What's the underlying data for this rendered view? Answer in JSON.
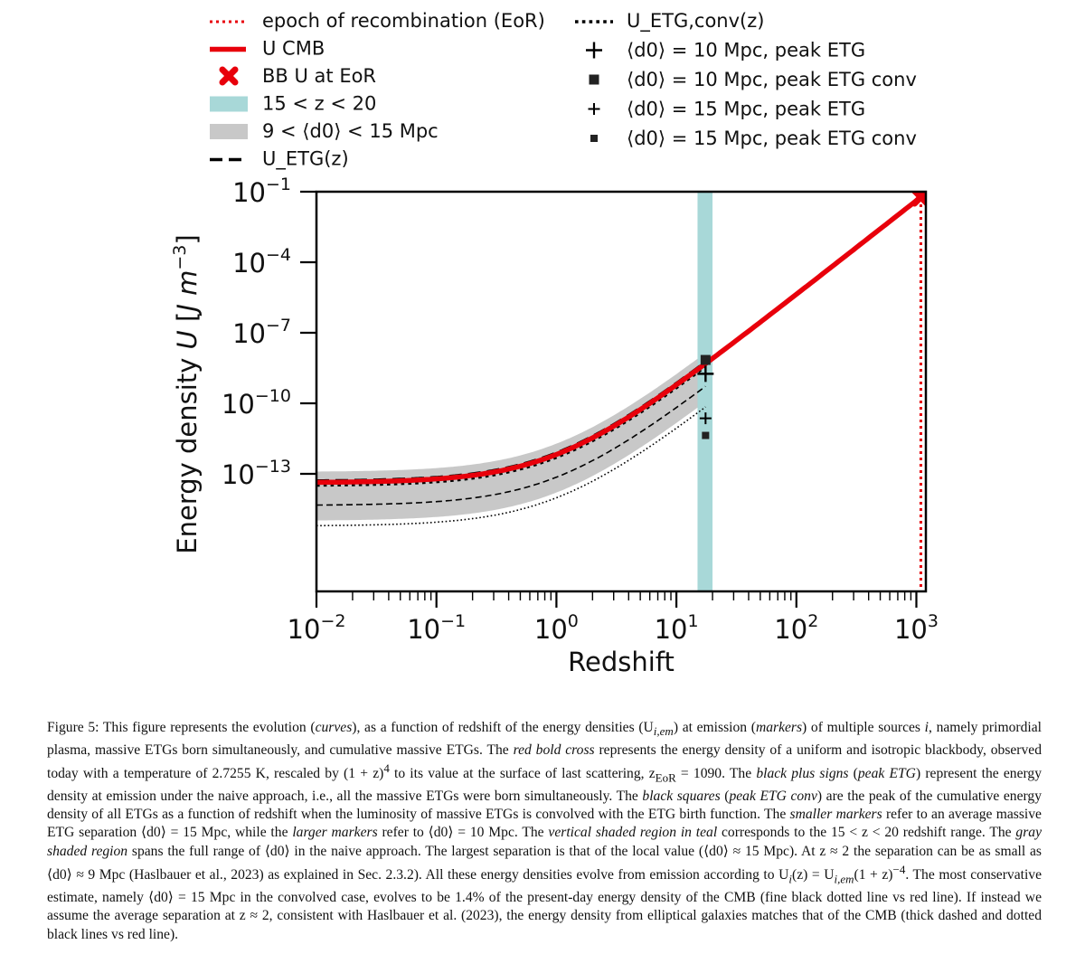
{
  "chart_data": {
    "type": "line",
    "xscale": "log",
    "yscale": "log",
    "xlabel": "Redshift",
    "ylabel": "Energy density U [J m^-3]",
    "xlim": [
      0.01,
      1200
    ],
    "ylim": [
      1e-18,
      0.1
    ],
    "x_ticks": [
      {
        "exp": "−2",
        "value": 0.01
      },
      {
        "exp": "−1",
        "value": 0.1
      },
      {
        "exp": "0",
        "value": 1
      },
      {
        "exp": "1",
        "value": 10
      },
      {
        "exp": "2",
        "value": 100
      },
      {
        "exp": "3",
        "value": 1000
      }
    ],
    "y_ticks": [
      {
        "exp": "−1",
        "value": 0.1
      },
      {
        "exp": "−4",
        "value": 0.0001
      },
      {
        "exp": "−7",
        "value": 1e-07
      },
      {
        "exp": "−10",
        "value": 1e-10
      },
      {
        "exp": "−13",
        "value": 1e-13
      }
    ],
    "series": [
      {
        "name": "epoch of recombination (EoR)",
        "kind": "vline",
        "x": 1090,
        "color": "#e8000b",
        "style": "dotted"
      },
      {
        "name": "U CMB",
        "kind": "curve",
        "u0": 4.17e-14,
        "z_start": 0.01,
        "z_end": 1090,
        "color": "#e8000b",
        "style": "bold"
      },
      {
        "name": "BB U at EoR",
        "kind": "marker",
        "x": 1090,
        "y": 0.0589,
        "color": "#e8000b"
      },
      {
        "name": "15 < z < 20",
        "kind": "vspan",
        "x": [
          15,
          20
        ],
        "color": "#a8d8d8"
      },
      {
        "name": "9 < ⟨d0⟩ < 15 Mpc",
        "kind": "band",
        "u0_low": 1e-15,
        "u0_high": 1.2e-13,
        "z_end": 17.5,
        "color": "#c8c8c8"
      },
      {
        "name": "U_ETG(z)",
        "kind": "curve",
        "style": "dashed-thick",
        "u0": 4.8e-14,
        "z_end": 17.5,
        "color": "#000000"
      },
      {
        "name": "U_ETG(z) (15 Mpc)",
        "kind": "curve",
        "style": "dashed-thin",
        "u0": 4.5e-15,
        "z_end": 17.5,
        "color": "#000000"
      },
      {
        "name": "U_ETG,conv(z)",
        "kind": "curve",
        "style": "dotted-thick",
        "u0": 3.2e-14,
        "z_end": 17.5,
        "color": "#000000"
      },
      {
        "name": "U_ETG,conv(z) (15 Mpc)",
        "kind": "curve",
        "style": "dotted-thin",
        "u0": 6e-16,
        "z_end": 17.5,
        "color": "#000000"
      }
    ],
    "markers": [
      {
        "name": "⟨d0⟩ = 10 Mpc, peak ETG",
        "shape": "plus-large",
        "x": 17.5,
        "y": 1.8e-09
      },
      {
        "name": "⟨d0⟩ = 10 Mpc, peak ETG conv",
        "shape": "square-large",
        "x": 17.5,
        "y": 7e-09
      },
      {
        "name": "⟨d0⟩ = 15 Mpc, peak ETG",
        "shape": "plus-small",
        "x": 17.5,
        "y": 2.3e-11
      },
      {
        "name": "⟨d0⟩ = 15 Mpc, peak ETG conv",
        "shape": "square-small",
        "x": 17.5,
        "y": 4.3e-12
      }
    ],
    "legend_left": [
      {
        "id": "eor",
        "label": "epoch of recombination (EoR)"
      },
      {
        "id": "cmb",
        "label": "U CMB"
      },
      {
        "id": "bb",
        "label": "BB U at EoR"
      },
      {
        "id": "teal",
        "label": "15 < z < 20"
      },
      {
        "id": "gray",
        "label": "9 < ⟨d0⟩ < 15 Mpc"
      },
      {
        "id": "etg",
        "label": "U_ETG(z)"
      }
    ],
    "legend_right": [
      {
        "id": "conv",
        "label": "U_ETG,conv(z)"
      },
      {
        "id": "p10",
        "label": "⟨d0⟩ = 10 Mpc, peak ETG"
      },
      {
        "id": "s10",
        "label": "⟨d0⟩ = 10 Mpc, peak ETG conv"
      },
      {
        "id": "p15",
        "label": "⟨d0⟩ = 15 Mpc, peak ETG"
      },
      {
        "id": "s15",
        "label": "⟨d0⟩ = 15 Mpc, peak ETG conv"
      }
    ]
  },
  "caption": {
    "figure_label": "Figure 5:",
    "t01": " This figure represents the evolution (",
    "t02": "curves",
    "t03": "), as a function of redshift of the energy densities (U",
    "t04": "i,em",
    "t05": ") at emission (",
    "t06": "markers",
    "t07": ") of multiple sources ",
    "t08": "i",
    "t09": ", namely primordial plasma, massive ETGs born simultaneously, and cumulative massive ETGs. The ",
    "t10": "red bold cross",
    "t11": " represents the energy density of a uniform and isotropic blackbody, observed today with a temperature of 2.7255 K, rescaled by (1 + z)",
    "t12": "4",
    "t13": " to its value at the surface of last scattering, z",
    "t14": "EoR",
    "t15": " = 1090. The ",
    "t16": "black plus signs",
    "t17": " (",
    "t18": "peak ETG",
    "t19": ") represent the energy density at emission under the naive approach, i.e., all the massive ETGs were born simultaneously. The ",
    "t20": "black squares",
    "t21": " (",
    "t22": "peak ETG conv",
    "t23": ") are the peak of the cumulative energy density of all ETGs as a function of redshift when the luminosity of massive ETGs is convolved with the ETG birth function. The ",
    "t24": "smaller markers",
    "t25": " refer to an average massive ETG separation ⟨d0⟩ = 15 Mpc, while the ",
    "t26": "larger markers",
    "t27": " refer to ⟨d0⟩ = 10 Mpc. The ",
    "t28": "vertical shaded region in teal",
    "t29": " corresponds to the 15 < z < 20 redshift range. The ",
    "t30": "gray shaded region",
    "t31": " spans the full range of ⟨d0⟩ in the naive approach. The largest separation is that of the local value (⟨d0⟩ ≈ 15 Mpc). At z ≈ 2 the separation can be as small as ⟨d0⟩ ≈ 9 Mpc (Haslbauer et al., 2023) as explained in Sec. 2.3.2). All these energy densities evolve from emission according to U",
    "t32": "i",
    "t33": "(z) = U",
    "t34": "i,em",
    "t35": "(1 + z)",
    "t36": "−4",
    "t37": ". The most conservative estimate, namely ⟨d0⟩ = 15 Mpc in the convolved case, evolves to be 1.4% of the present-day energy density of the CMB (fine black dotted line vs red line). If instead we assume the average separation at z ≈ 2, consistent with Haslbauer et al. (2023), the energy density from elliptical galaxies matches that of the CMB (thick dashed and dotted black lines vs red line)."
  }
}
